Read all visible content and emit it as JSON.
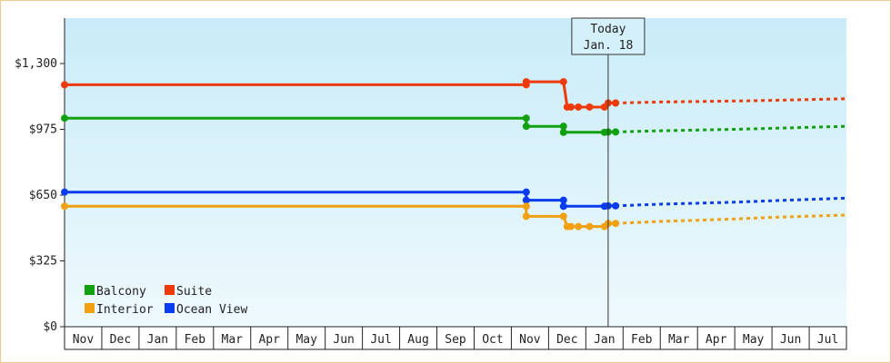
{
  "chart_data": {
    "type": "line",
    "title": "",
    "xlabel": "",
    "ylabel": "",
    "y_ticks": [
      {
        "value": 0,
        "label": "$0"
      },
      {
        "value": 325,
        "label": "$325"
      },
      {
        "value": 650,
        "label": "$650"
      },
      {
        "value": 975,
        "label": "$975"
      },
      {
        "value": 1300,
        "label": "$1,300"
      }
    ],
    "ylim": [
      0,
      1300
    ],
    "x_categories": [
      "Nov",
      "Dec",
      "Jan",
      "Feb",
      "Mar",
      "Apr",
      "May",
      "Jun",
      "Jul",
      "Aug",
      "Sep",
      "Oct",
      "Nov",
      "Dec",
      "Jan",
      "Feb",
      "Mar",
      "Apr",
      "May",
      "Jun",
      "Jul"
    ],
    "x_range_months": [
      0,
      21
    ],
    "today_marker": {
      "line1": "Today",
      "line2": "Jan. 18",
      "x": 14.6
    },
    "grid": false,
    "legend_position": "bottom-left",
    "series": [
      {
        "name": "Suite",
        "color": "#ee3a0a",
        "points": [
          [
            0,
            1195
          ],
          [
            12.4,
            1195
          ],
          [
            12.4,
            1210
          ],
          [
            13.4,
            1210
          ],
          [
            13.5,
            1085
          ],
          [
            13.6,
            1085
          ],
          [
            13.8,
            1085
          ],
          [
            14.1,
            1085
          ],
          [
            14.5,
            1085
          ],
          [
            14.6,
            1105
          ],
          [
            14.8,
            1105
          ]
        ],
        "forecast": [
          [
            14.8,
            1105
          ],
          [
            16,
            1110
          ],
          [
            18,
            1115
          ],
          [
            19,
            1118
          ],
          [
            21,
            1126
          ]
        ]
      },
      {
        "name": "Balcony",
        "color": "#11a010",
        "points": [
          [
            0,
            1030
          ],
          [
            12.4,
            1030
          ],
          [
            12.4,
            990
          ],
          [
            13.4,
            990
          ],
          [
            13.4,
            960
          ],
          [
            14.5,
            960
          ],
          [
            14.6,
            962
          ],
          [
            14.8,
            962
          ]
        ],
        "forecast": [
          [
            14.8,
            962
          ],
          [
            16,
            968
          ],
          [
            18,
            975
          ],
          [
            19,
            980
          ],
          [
            21,
            990
          ]
        ]
      },
      {
        "name": "Ocean View",
        "color": "#0a3cee",
        "points": [
          [
            0,
            665
          ],
          [
            12.4,
            665
          ],
          [
            12.4,
            625
          ],
          [
            13.4,
            625
          ],
          [
            13.4,
            595
          ],
          [
            14.5,
            595
          ],
          [
            14.6,
            597
          ],
          [
            14.8,
            597
          ]
        ],
        "forecast": [
          [
            14.8,
            597
          ],
          [
            16,
            605
          ],
          [
            18,
            615
          ],
          [
            19,
            622
          ],
          [
            21,
            635
          ]
        ]
      },
      {
        "name": "Interior",
        "color": "#f0a010",
        "points": [
          [
            0,
            595
          ],
          [
            12.4,
            595
          ],
          [
            12.4,
            545
          ],
          [
            13.4,
            545
          ],
          [
            13.5,
            495
          ],
          [
            13.6,
            495
          ],
          [
            13.8,
            495
          ],
          [
            14.1,
            495
          ],
          [
            14.5,
            495
          ],
          [
            14.6,
            510
          ],
          [
            14.8,
            510
          ]
        ],
        "forecast": [
          [
            14.8,
            510
          ],
          [
            16,
            520
          ],
          [
            18,
            532
          ],
          [
            19,
            540
          ],
          [
            21,
            552
          ]
        ]
      }
    ],
    "legend": [
      {
        "name": "Balcony",
        "color": "#11a010"
      },
      {
        "name": "Suite",
        "color": "#ee3a0a"
      },
      {
        "name": "Interior",
        "color": "#f0a010"
      },
      {
        "name": "Ocean View",
        "color": "#0a3cee"
      }
    ]
  }
}
